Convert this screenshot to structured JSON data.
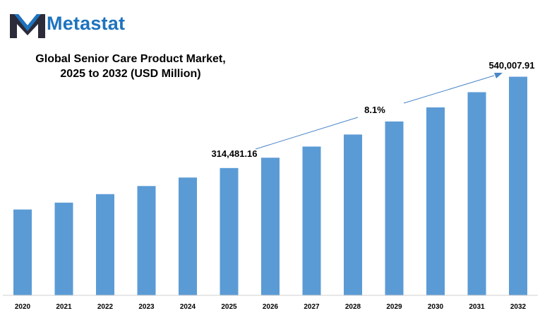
{
  "brand": {
    "name": "Metastat",
    "color": "#1e73be",
    "dark": "#2b2b3a"
  },
  "title_lines": [
    "Global Senior Care Product Market,",
    "2025 to 2032 (USD Million)"
  ],
  "chart_data": {
    "type": "bar",
    "title": "Global Senior Care Product Market, 2025 to 2032 (USD Million)",
    "xlabel": "",
    "ylabel": "",
    "categories": [
      "2020",
      "2021",
      "2022",
      "2023",
      "2024",
      "2025",
      "2026",
      "2027",
      "2028",
      "2029",
      "2030",
      "2031",
      "2032"
    ],
    "values": [
      212000,
      229000,
      250000,
      270000,
      291000,
      314481.16,
      339953,
      367489,
      397256,
      429433,
      464217,
      501818,
      540007.91
    ],
    "ylim": [
      0,
      555000
    ],
    "bar_color": "#5b9bd5",
    "grid": false,
    "annotations": {
      "start_label": "314,481.16",
      "end_label": "540,007.91",
      "cagr_label": "8.1%"
    }
  }
}
